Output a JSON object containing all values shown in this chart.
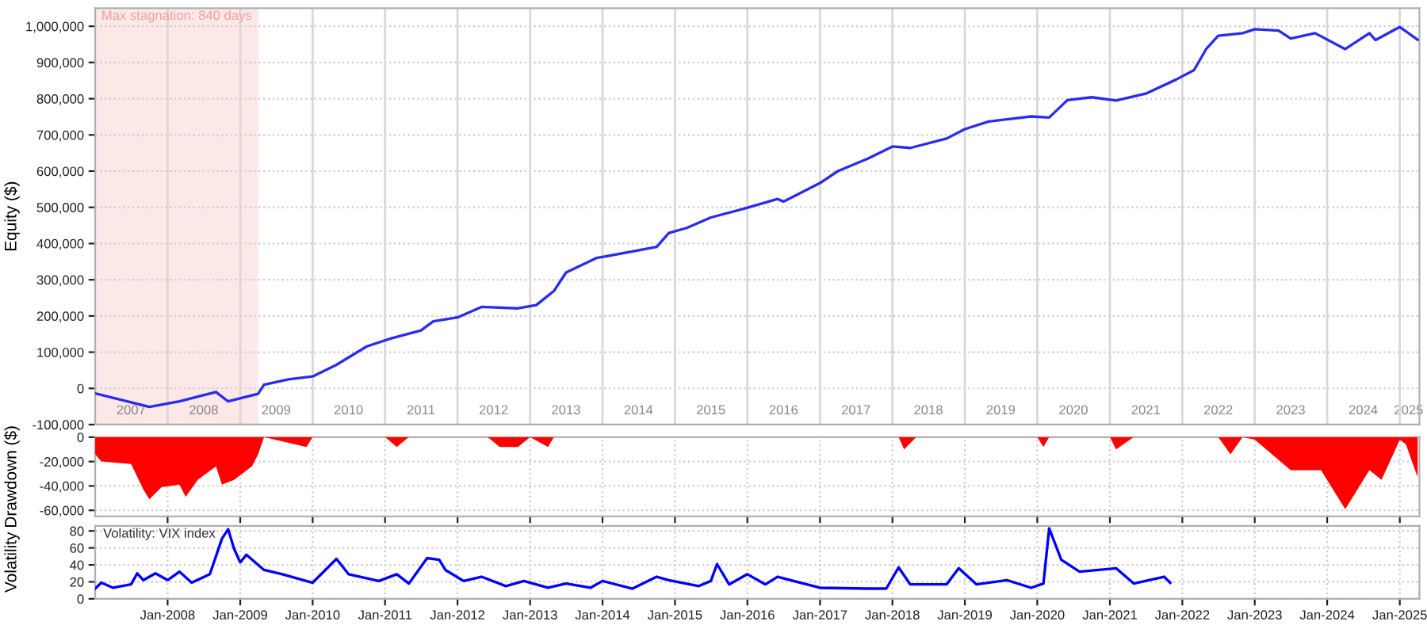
{
  "chart_data": [
    {
      "type": "line",
      "ylabel": "Equity ($)",
      "xlim": [
        "2007-01",
        "2025-04-10"
      ],
      "ylim": [
        -100000,
        1050000
      ],
      "xticks": [
        {
          "value": "2007-07-01",
          "label": "2007"
        },
        {
          "value": "2008-07-01",
          "label": "2008"
        },
        {
          "value": "2009-07-01",
          "label": "2009"
        },
        {
          "value": "2010-07-01",
          "label": "2010"
        },
        {
          "value": "2011-07-01",
          "label": "2011"
        },
        {
          "value": "2012-07-01",
          "label": "2012"
        },
        {
          "value": "2013-07-01",
          "label": "2013"
        },
        {
          "value": "2014-07-01",
          "label": "2014"
        },
        {
          "value": "2015-07-01",
          "label": "2015"
        },
        {
          "value": "2016-07-01",
          "label": "2016"
        },
        {
          "value": "2017-07-01",
          "label": "2017"
        },
        {
          "value": "2018-07-01",
          "label": "2018"
        },
        {
          "value": "2019-07-01",
          "label": "2019"
        },
        {
          "value": "2020-07-01",
          "label": "2020"
        },
        {
          "value": "2021-07-01",
          "label": "2021"
        },
        {
          "value": "2022-07-01",
          "label": "2022"
        },
        {
          "value": "2023-07-01",
          "label": "2023"
        },
        {
          "value": "2024-07-01",
          "label": "2024"
        },
        {
          "value": "2025-02-15",
          "label": "2025"
        }
      ],
      "yticks": [
        {
          "value": -100000,
          "label": "-100,000"
        },
        0,
        {
          "value": 100000,
          "label": "100,000"
        },
        {
          "value": 200000,
          "label": "200,000"
        },
        {
          "value": 300000,
          "label": "300,000"
        },
        {
          "value": 400000,
          "label": "400,000"
        },
        {
          "value": 500000,
          "label": "500,000"
        },
        {
          "value": 600000,
          "label": "600,000"
        },
        {
          "value": 700000,
          "label": "700,000"
        },
        {
          "value": 800000,
          "label": "800,000"
        },
        {
          "value": 900000,
          "label": "900,000"
        },
        {
          "value": 1000000,
          "label": "1,000,000"
        }
      ],
      "grid": true,
      "bands": [
        {
          "axis": "x",
          "from": "2007-01",
          "to": "2009-04",
          "label": "Max stagnation: 840 days",
          "color": "#fde8e8"
        }
      ],
      "series": [
        {
          "color": "#2b2bf0",
          "x": [
            "2007-01",
            "2007-10",
            "2008-03",
            "2008-09",
            "2008-11",
            "2009-04",
            "2009-05",
            "2009-09",
            "2010-01",
            "2010-05",
            "2010-10",
            "2011-02",
            "2011-07",
            "2011-09",
            "2012-01",
            "2012-05",
            "2012-11",
            "2013-02",
            "2013-05",
            "2013-07",
            "2013-12",
            "2014-06",
            "2014-10",
            "2014-12",
            "2015-03",
            "2015-07",
            "2015-12",
            "2016-06",
            "2016-07",
            "2017-01",
            "2017-04",
            "2017-09",
            "2018-01",
            "2018-04",
            "2018-10",
            "2019-01",
            "2019-05",
            "2019-12",
            "2020-03",
            "2020-06",
            "2020-10",
            "2021-02",
            "2021-07",
            "2021-12",
            "2022-03",
            "2022-05",
            "2022-07",
            "2022-11",
            "2023-01",
            "2023-05",
            "2023-07",
            "2023-11",
            "2024-04",
            "2024-08",
            "2024-09",
            "2025-01",
            "2025-04"
          ],
          "values": [
            -14000,
            -51000,
            -36000,
            -10000,
            -36000,
            -15000,
            10000,
            25000,
            33000,
            65000,
            116000,
            138000,
            160000,
            185000,
            196000,
            225000,
            221000,
            230000,
            269000,
            320000,
            360000,
            378000,
            391000,
            429000,
            443000,
            472000,
            494000,
            523000,
            516000,
            567000,
            600000,
            635000,
            668000,
            664000,
            690000,
            716000,
            737000,
            751000,
            748000,
            796000,
            804000,
            795000,
            814000,
            853000,
            879000,
            937000,
            974000,
            981000,
            992000,
            988000,
            966000,
            981000,
            937000,
            981000,
            962000,
            998000,
            963000
          ]
        }
      ]
    },
    {
      "type": "area",
      "ylabel": "Drawdown ($)",
      "xlim": [
        "2007-01",
        "2025-04-10"
      ],
      "ylim": [
        -65000,
        0
      ],
      "xticks": [
        {
          "value": "2008-01-01",
          "label": null
        },
        {
          "value": "2009-01-01",
          "label": null
        },
        {
          "value": "2010-01-01",
          "label": null
        },
        {
          "value": "2011-01-01",
          "label": null
        },
        {
          "value": "2012-01-01",
          "label": null
        },
        {
          "value": "2013-01-01",
          "label": null
        },
        {
          "value": "2014-01-01",
          "label": null
        },
        {
          "value": "2015-01-01",
          "label": null
        },
        {
          "value": "2016-01-01",
          "label": null
        },
        {
          "value": "2017-01-01",
          "label": null
        },
        {
          "value": "2018-01-01",
          "label": null
        },
        {
          "value": "2019-01-01",
          "label": null
        },
        {
          "value": "2020-01-01",
          "label": null
        },
        {
          "value": "2021-01-01",
          "label": null
        },
        {
          "value": "2022-01-01",
          "label": null
        },
        {
          "value": "2023-01-01",
          "label": null
        },
        {
          "value": "2024-01-01",
          "label": null
        },
        {
          "value": "2025-01-01",
          "label": null
        }
      ],
      "yticks": [
        {
          "value": -60000,
          "label": "-60,000"
        },
        {
          "value": -40000,
          "label": "-40,000"
        },
        {
          "value": -20000,
          "label": "-20,000"
        },
        0
      ],
      "grid": true,
      "tick_labels": "y",
      "series": [
        {
          "color": "#ff0000",
          "x": [
            "2007-01",
            "2007-02",
            "2007-07",
            "2007-09",
            "2007-10",
            "2007-12",
            "2008-03",
            "2008-04",
            "2008-06",
            "2008-09",
            "2008-10",
            "2008-12",
            "2009-03",
            "2009-04",
            "2009-05",
            "2009-12",
            "2010-01",
            "2011-01",
            "2011-03",
            "2011-05",
            "2012-06",
            "2012-08",
            "2012-11",
            "2013-01",
            "2013-04",
            "2013-05",
            "2018-02",
            "2018-03",
            "2018-05",
            "2020-01",
            "2020-02",
            "2020-03",
            "2021-01",
            "2021-02",
            "2021-05",
            "2022-07",
            "2022-09",
            "2022-11",
            "2023-01",
            "2023-07",
            "2023-12",
            "2024-04",
            "2024-08",
            "2024-10",
            "2025-01",
            "2025-02",
            "2025-04"
          ],
          "values": [
            -14000,
            -20000,
            -22000,
            -43000,
            -51000,
            -41000,
            -39000,
            -49000,
            -35000,
            -24000,
            -39000,
            -35000,
            -24000,
            -14000,
            0,
            -8000,
            0,
            0,
            -8000,
            0,
            0,
            -8000,
            -8000,
            0,
            -8000,
            0,
            0,
            -10000,
            0,
            0,
            -8000,
            0,
            0,
            -10000,
            0,
            0,
            -14000,
            0,
            -2000,
            -27000,
            -27000,
            -59000,
            -27000,
            -35000,
            -2000,
            -6000,
            -33000
          ]
        }
      ]
    },
    {
      "type": "line",
      "ylabel": "Volatility",
      "xlim": [
        "2007-01",
        "2025-04-10"
      ],
      "ylim": [
        0,
        86
      ],
      "xticks": [
        {
          "value": "2008-01-01",
          "label": "Jan-2008"
        },
        {
          "value": "2009-01-01",
          "label": "Jan-2009"
        },
        {
          "value": "2010-01-01",
          "label": "Jan-2010"
        },
        {
          "value": "2011-01-01",
          "label": "Jan-2011"
        },
        {
          "value": "2012-01-01",
          "label": "Jan-2012"
        },
        {
          "value": "2013-01-01",
          "label": "Jan-2013"
        },
        {
          "value": "2014-01-01",
          "label": "Jan-2014"
        },
        {
          "value": "2015-01-01",
          "label": "Jan-2015"
        },
        {
          "value": "2016-01-01",
          "label": "Jan-2016"
        },
        {
          "value": "2017-01-01",
          "label": "Jan-2017"
        },
        {
          "value": "2018-01-01",
          "label": "Jan-2018"
        },
        {
          "value": "2019-01-01",
          "label": "Jan-2019"
        },
        {
          "value": "2020-01-01",
          "label": "Jan-2020"
        },
        {
          "value": "2021-01-01",
          "label": "Jan-2021"
        },
        {
          "value": "2022-01-01",
          "label": "Jan-2022"
        },
        {
          "value": "2023-01-01",
          "label": "Jan-2023"
        },
        {
          "value": "2024-01-01",
          "label": "Jan-2024"
        },
        {
          "value": "2025-01-01",
          "label": "Jan-2025"
        }
      ],
      "yticks": [
        0,
        20,
        40,
        60,
        80
      ],
      "grid": true,
      "annotations": [
        "Volatility: VIX index"
      ],
      "series": [
        {
          "color": "#0000ff",
          "x": [
            "2007-01",
            "2007-02",
            "2007-04",
            "2007-07",
            "2007-08",
            "2007-09",
            "2007-11",
            "2008-01",
            "2008-03",
            "2008-05",
            "2008-08",
            "2008-10",
            "2008-11",
            "2008-12",
            "2009-01",
            "2009-02",
            "2009-05",
            "2009-08",
            "2010-01",
            "2010-05",
            "2010-07",
            "2010-12",
            "2011-03",
            "2011-05",
            "2011-08",
            "2011-10",
            "2011-11",
            "2012-02",
            "2012-05",
            "2012-09",
            "2012-12",
            "2013-04",
            "2013-07",
            "2013-11",
            "2014-01",
            "2014-06",
            "2014-10",
            "2014-12",
            "2015-05",
            "2015-07",
            "2015-08",
            "2015-10",
            "2016-01",
            "2016-04",
            "2016-06",
            "2017-01",
            "2017-09",
            "2017-12",
            "2018-02",
            "2018-04",
            "2018-10",
            "2018-12",
            "2019-03",
            "2019-08",
            "2019-12",
            "2020-02",
            "2020-03",
            "2020-05",
            "2020-08",
            "2021-02",
            "2021-05",
            "2021-10",
            "2021-11"
          ],
          "values": [
            12,
            19,
            13,
            17,
            30,
            22,
            30,
            22,
            32,
            19,
            29,
            71,
            82,
            59,
            43,
            52,
            34,
            29,
            19,
            47,
            29,
            21,
            29,
            18,
            48,
            46,
            34,
            21,
            26,
            15,
            21,
            13,
            18,
            13,
            21,
            12,
            26,
            22,
            15,
            21,
            41,
            17,
            29,
            17,
            26,
            13,
            12,
            12,
            37,
            17,
            17,
            36,
            17,
            22,
            13,
            18,
            83,
            46,
            32,
            36,
            18,
            26,
            19
          ]
        }
      ]
    }
  ]
}
